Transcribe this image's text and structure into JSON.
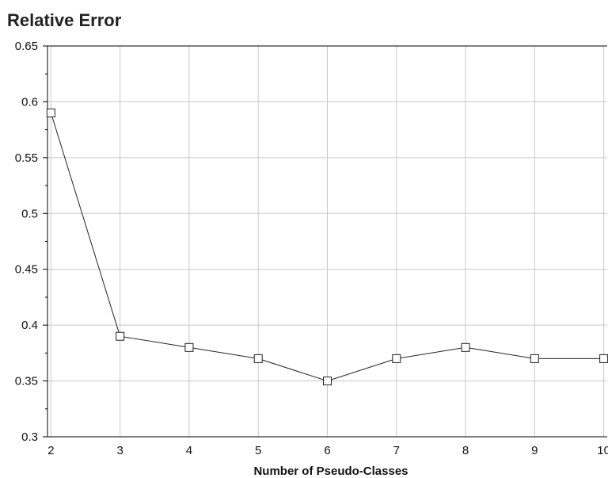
{
  "chart_data": {
    "type": "line",
    "title": "Relative Error",
    "xlabel": "Number of Pseudo-Classes",
    "ylabel": "",
    "x": [
      2,
      3,
      4,
      5,
      6,
      7,
      8,
      9,
      10
    ],
    "x_ticks": [
      "2",
      "3",
      "4",
      "5",
      "6",
      "7",
      "8",
      "9",
      "10"
    ],
    "y_ticks": [
      "0.3",
      "0.35",
      "0.4",
      "0.45",
      "0.5",
      "0.55",
      "0.6",
      "0.65"
    ],
    "xlim": [
      1.95,
      10.05
    ],
    "ylim": [
      0.3,
      0.65
    ],
    "grid": true,
    "marker": "square",
    "series": [
      {
        "values": [
          0.59,
          0.39,
          0.38,
          0.37,
          0.35,
          0.37,
          0.38,
          0.37,
          0.37
        ]
      }
    ]
  }
}
